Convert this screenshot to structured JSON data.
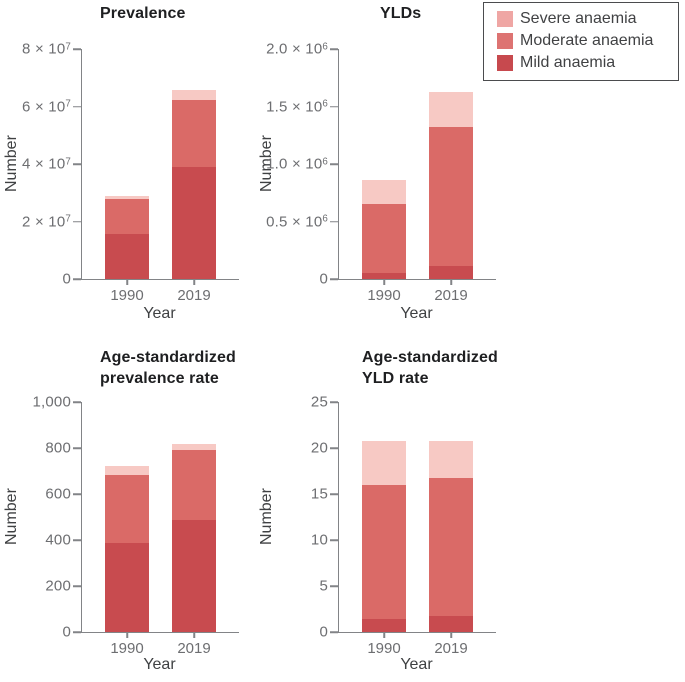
{
  "palette": {
    "mild": "#c84b4f",
    "moderate": "#da6a67",
    "severe": "#f7c9c4",
    "legend_mild": "#c7494e",
    "legend_moderate": "#dd7372",
    "legend_severe": "#efa6a4",
    "axis": "#828487",
    "tick_text": "#6d6e71",
    "axis_label_text": "#3f4143",
    "title_text": "#1e1f21",
    "legend_border": "#4b4c4e",
    "background": "#ffffff"
  },
  "legend": {
    "items": [
      {
        "label": "Severe anaemia",
        "color_key": "legend_severe"
      },
      {
        "label": "Moderate anaemia",
        "color_key": "legend_moderate"
      },
      {
        "label": "Mild anaemia",
        "color_key": "legend_mild"
      }
    ]
  },
  "chart_data": [
    {
      "id": "prevalence",
      "type": "bar",
      "stacked": true,
      "title": "Prevalence",
      "xlabel": "Year",
      "ylabel": "Number",
      "categories": [
        "1990",
        "2019"
      ],
      "ylim": [
        0,
        80000000
      ],
      "grid": false,
      "yticks": [
        {
          "value": 0,
          "label": "0"
        },
        {
          "value": 20000000,
          "label": "2 × 10^7"
        },
        {
          "value": 40000000,
          "label": "4 × 10^7"
        },
        {
          "value": 60000000,
          "label": "6 × 10^7"
        },
        {
          "value": 80000000,
          "label": "8 × 10^7"
        }
      ],
      "series": [
        {
          "name": "Mild anaemia",
          "color_key": "mild",
          "values": [
            15500000,
            38800000
          ]
        },
        {
          "name": "Moderate anaemia",
          "color_key": "moderate",
          "values": [
            12500000,
            23500000
          ]
        },
        {
          "name": "Severe anaemia",
          "color_key": "severe",
          "values": [
            1000000,
            3500000
          ]
        }
      ]
    },
    {
      "id": "ylds",
      "type": "bar",
      "stacked": true,
      "title": "YLDs",
      "xlabel": "Year",
      "ylabel": "Number",
      "categories": [
        "1990",
        "2019"
      ],
      "ylim": [
        0,
        2000000
      ],
      "grid": false,
      "yticks": [
        {
          "value": 0,
          "label": "0"
        },
        {
          "value": 500000,
          "label": "0.5 × 10^6"
        },
        {
          "value": 1000000,
          "label": "1.0 × 10^6"
        },
        {
          "value": 1500000,
          "label": "1.5 × 10^6"
        },
        {
          "value": 2000000,
          "label": "2.0 × 10^6"
        }
      ],
      "series": [
        {
          "name": "Mild anaemia",
          "color_key": "mild",
          "values": [
            50000,
            110000
          ]
        },
        {
          "name": "Moderate anaemia",
          "color_key": "moderate",
          "values": [
            600000,
            1210000
          ]
        },
        {
          "name": "Severe anaemia",
          "color_key": "severe",
          "values": [
            210000,
            310000
          ]
        }
      ]
    },
    {
      "id": "age-standardized-prevalence-rate",
      "type": "bar",
      "stacked": true,
      "title": "Age-standardized\nprevalence rate",
      "xlabel": "Year",
      "ylabel": "Number",
      "categories": [
        "1990",
        "2019"
      ],
      "ylim": [
        0,
        1000
      ],
      "grid": false,
      "yticks": [
        {
          "value": 0,
          "label": "0"
        },
        {
          "value": 200,
          "label": "200"
        },
        {
          "value": 400,
          "label": "400"
        },
        {
          "value": 600,
          "label": "600"
        },
        {
          "value": 800,
          "label": "800"
        },
        {
          "value": 1000,
          "label": "1,000"
        }
      ],
      "series": [
        {
          "name": "Mild anaemia",
          "color_key": "mild",
          "values": [
            388,
            485
          ]
        },
        {
          "name": "Moderate anaemia",
          "color_key": "moderate",
          "values": [
            294,
            306
          ]
        },
        {
          "name": "Severe anaemia",
          "color_key": "severe",
          "values": [
            40,
            27
          ]
        }
      ]
    },
    {
      "id": "age-standardized-yld-rate",
      "type": "bar",
      "stacked": true,
      "title": "Age-standardized\nYLD rate",
      "xlabel": "Year",
      "ylabel": "Number",
      "categories": [
        "1990",
        "2019"
      ],
      "ylim": [
        0,
        25
      ],
      "grid": false,
      "yticks": [
        {
          "value": 0,
          "label": "0"
        },
        {
          "value": 5,
          "label": "5"
        },
        {
          "value": 10,
          "label": "10"
        },
        {
          "value": 15,
          "label": "15"
        },
        {
          "value": 20,
          "label": "20"
        },
        {
          "value": 25,
          "label": "25"
        }
      ],
      "series": [
        {
          "name": "Mild anaemia",
          "color_key": "mild",
          "values": [
            1.4,
            1.7
          ]
        },
        {
          "name": "Moderate anaemia",
          "color_key": "moderate",
          "values": [
            14.6,
            15.0
          ]
        },
        {
          "name": "Severe anaemia",
          "color_key": "severe",
          "values": [
            4.8,
            4.1
          ]
        }
      ]
    }
  ]
}
